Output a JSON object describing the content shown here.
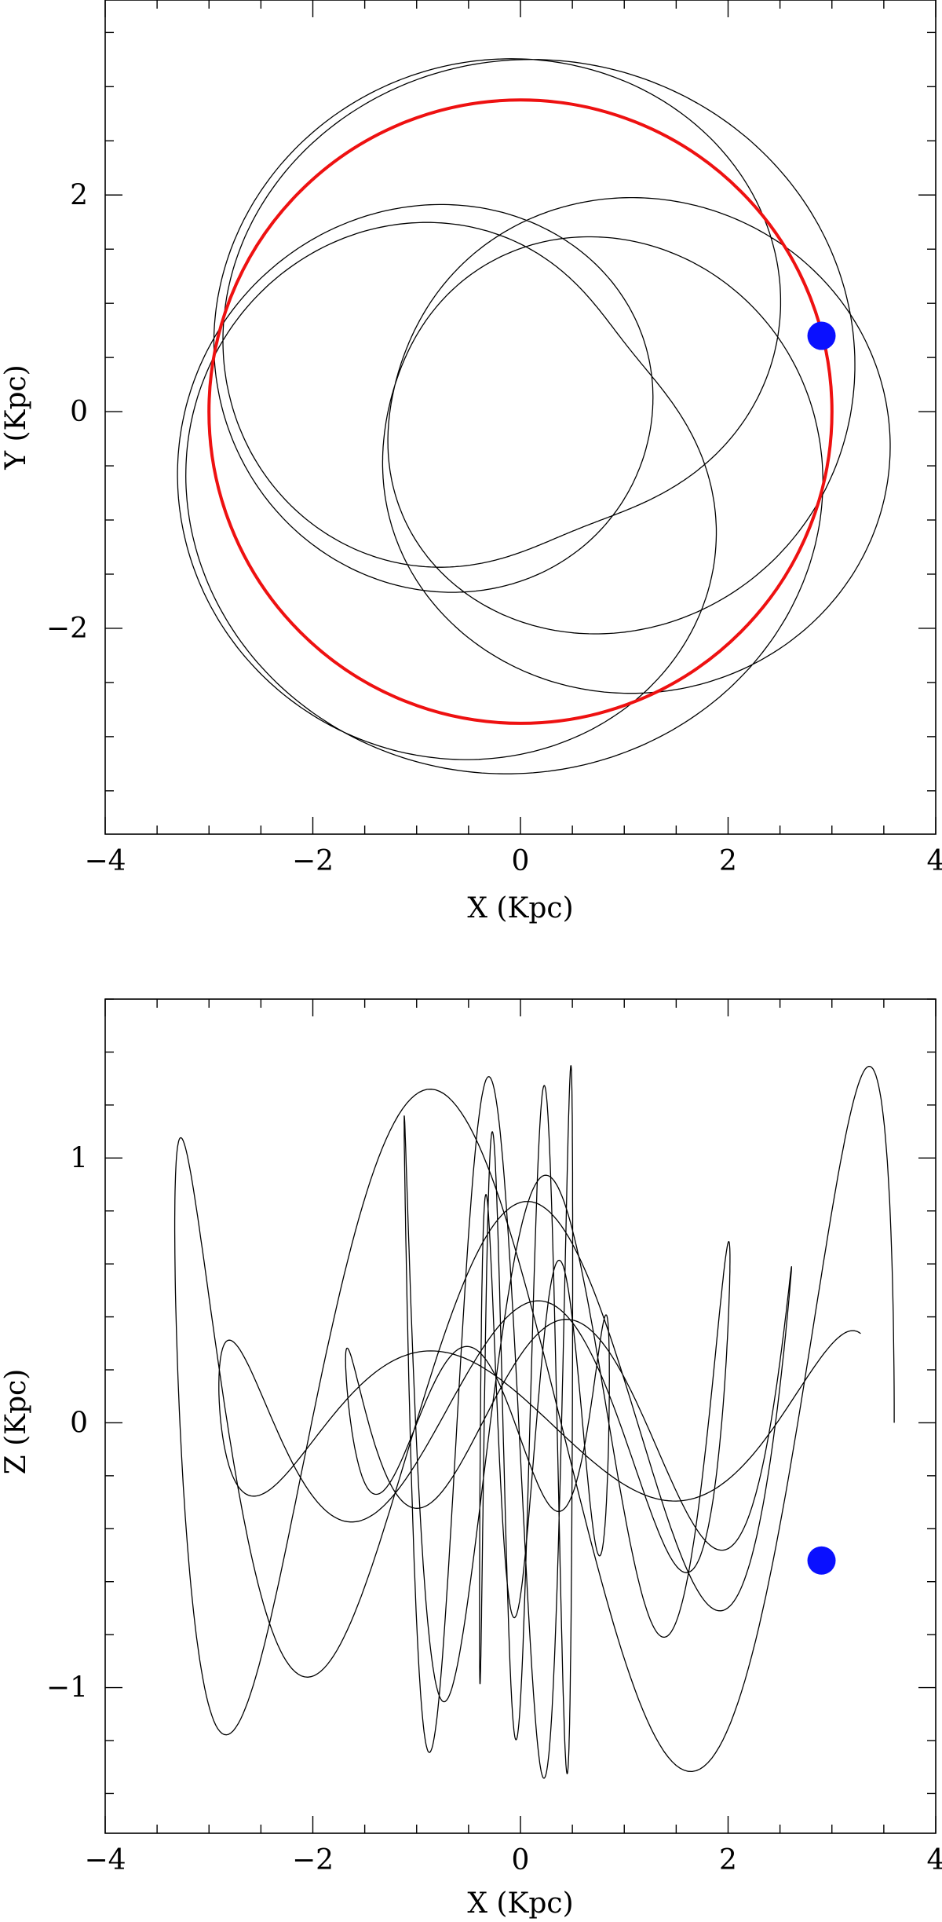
{
  "colors": {
    "circle": "#ee1111",
    "marker": "#0a10ff",
    "orbit": "#000000"
  },
  "chart_data": [
    {
      "type": "line",
      "panel": "top",
      "xlabel": "X (Kpc)",
      "ylabel": "Y (Kpc)",
      "xlim": [
        -4,
        4
      ],
      "ylim": [
        -3.9,
        3.8
      ],
      "x_major_ticks": [
        -4,
        -2,
        0,
        2,
        4
      ],
      "x_tick_labels": [
        "−4",
        "−2",
        "0",
        "2",
        "4"
      ],
      "y_major_ticks": [
        -2,
        0,
        2
      ],
      "y_tick_labels": [
        "−2",
        "0",
        "2"
      ],
      "minor_step": 0.5,
      "series": [
        {
          "kind": "rosette_orbit",
          "r_min": 1.25,
          "r_max": 3.6,
          "lobes": 5,
          "turns": 6,
          "phase_deg": -15
        },
        {
          "kind": "circle",
          "center": [
            0,
            0
          ],
          "radius": 3.0
        }
      ],
      "marker": {
        "x": 2.9,
        "y": 0.7
      }
    },
    {
      "type": "line",
      "panel": "bottom",
      "xlabel": "X (Kpc)",
      "ylabel": "Z (Kpc)",
      "xlim": [
        -4,
        4
      ],
      "ylim": [
        -1.55,
        1.6
      ],
      "x_major_ticks": [
        -4,
        -2,
        0,
        2,
        4
      ],
      "x_tick_labels": [
        "−4",
        "−2",
        "0",
        "2",
        "4"
      ],
      "y_major_ticks": [
        -1,
        0,
        1
      ],
      "y_tick_labels": [
        "−1",
        "0",
        "1"
      ],
      "minor_step": 0.2,
      "series": [
        {
          "kind": "vertical_oscillation",
          "z_amplitude": 1.35,
          "x_extent": 3.6
        }
      ],
      "marker": {
        "x": 2.9,
        "y": -0.52
      }
    }
  ]
}
